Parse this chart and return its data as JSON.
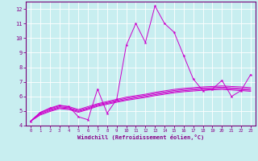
{
  "xlabel": "Windchill (Refroidissement éolien,°C)",
  "background_color": "#c8eef0",
  "grid_color": "#ffffff",
  "line_color": "#cc00cc",
  "xlim": [
    -0.5,
    23.5
  ],
  "ylim": [
    4,
    12.5
  ],
  "yticks": [
    4,
    5,
    6,
    7,
    8,
    9,
    10,
    11,
    12
  ],
  "xticks": [
    0,
    1,
    2,
    3,
    4,
    5,
    6,
    7,
    8,
    9,
    10,
    11,
    12,
    13,
    14,
    15,
    16,
    17,
    18,
    19,
    20,
    21,
    22,
    23
  ],
  "main_y": [
    4.3,
    4.9,
    5.2,
    5.4,
    5.3,
    4.6,
    4.4,
    6.5,
    4.85,
    5.8,
    9.5,
    11.0,
    9.7,
    12.2,
    11.0,
    10.4,
    8.8,
    7.2,
    6.4,
    6.5,
    7.1,
    6.0,
    6.4,
    7.5
  ],
  "line1_y": [
    4.3,
    4.9,
    5.15,
    5.35,
    5.3,
    5.1,
    5.3,
    5.5,
    5.65,
    5.8,
    5.95,
    6.05,
    6.15,
    6.28,
    6.38,
    6.48,
    6.55,
    6.6,
    6.65,
    6.68,
    6.72,
    6.68,
    6.65,
    6.6
  ],
  "line2_y": [
    4.3,
    4.85,
    5.08,
    5.28,
    5.22,
    5.03,
    5.22,
    5.44,
    5.58,
    5.73,
    5.87,
    5.98,
    6.08,
    6.2,
    6.3,
    6.4,
    6.47,
    6.52,
    6.57,
    6.6,
    6.63,
    6.59,
    6.55,
    6.5
  ],
  "line3_y": [
    4.3,
    4.78,
    5.02,
    5.22,
    5.16,
    4.97,
    5.16,
    5.38,
    5.52,
    5.66,
    5.79,
    5.9,
    6.0,
    6.12,
    6.22,
    6.32,
    6.39,
    6.44,
    6.49,
    6.52,
    6.55,
    6.51,
    6.47,
    6.42
  ],
  "line4_y": [
    4.3,
    4.72,
    4.96,
    5.16,
    5.1,
    4.91,
    5.1,
    5.32,
    5.46,
    5.6,
    5.73,
    5.83,
    5.93,
    6.05,
    6.15,
    6.25,
    6.32,
    6.37,
    6.42,
    6.45,
    6.48,
    6.44,
    6.4,
    6.35
  ]
}
